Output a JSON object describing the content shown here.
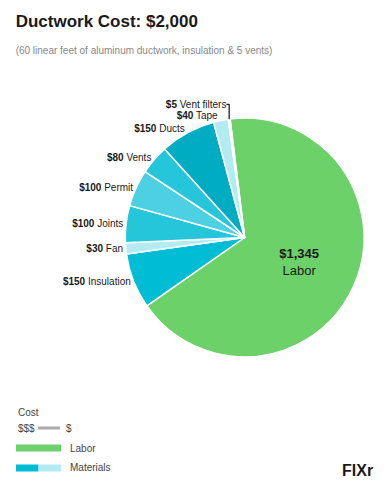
{
  "chart_data": {
    "type": "pie",
    "title": "Ductwork Cost: $2,000",
    "subtitle": "(60 linear feet of aluminum ductwork, insulation & 5 vents)",
    "categories": [
      "Labor",
      "Insulation",
      "Fan",
      "Joints",
      "Permit",
      "Vents",
      "Ducts",
      "Tape",
      "Vent filters"
    ],
    "values": [
      1345,
      150,
      30,
      100,
      100,
      80,
      150,
      40,
      5
    ],
    "value_labels": [
      "$1,345",
      "$150",
      "$30",
      "$100",
      "$100",
      "$80",
      "$150",
      "$40",
      "$5"
    ],
    "colors": [
      "#6dd16a",
      "#00bcd4",
      "#b2ebf2",
      "#26c6da",
      "#4dd0e1",
      "#26c6da",
      "#00acc1",
      "#b2ebf2",
      "#e0f7fa"
    ],
    "data_labels": true,
    "annotations": [
      "Cost",
      "$$$",
      "$",
      {
        "text": "Labor",
        "color": "#6dd16a"
      },
      {
        "text": "Materials",
        "colors": [
          "#00bcd4",
          "#b2ebf2"
        ]
      },
      "FIXr"
    ]
  }
}
